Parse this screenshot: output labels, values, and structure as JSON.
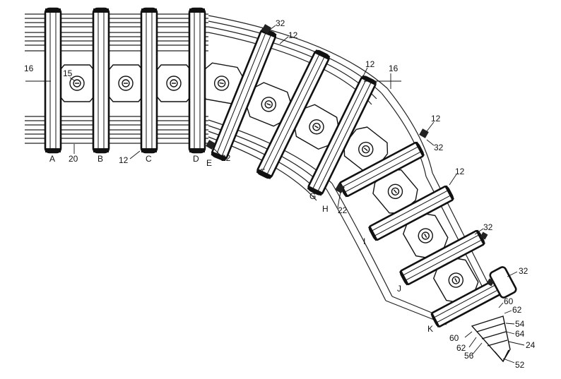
{
  "figure": {
    "ring_letters": [
      "A",
      "B",
      "C",
      "D",
      "E",
      "F",
      "G",
      "H",
      "I",
      "J",
      "K"
    ],
    "reference_numerals": [
      "16",
      "15",
      "20",
      "12",
      "22",
      "32",
      "60",
      "62",
      "54",
      "64",
      "24",
      "56",
      "52"
    ],
    "labels": {
      "sixteen_left": "16",
      "sixteen_right": "16",
      "fifteen": "15",
      "twenty": "20",
      "twelve_bottom": "12",
      "twelve_a": "12",
      "twelve_b": "12",
      "twelve_c": "12",
      "twelve_d": "12",
      "twentytwo_a": "22",
      "twentytwo_b": "22",
      "thirtytwo_a": "32",
      "thirtytwo_b": "32",
      "thirtytwo_c": "32",
      "thirtytwo_d": "32",
      "sixty_a": "60",
      "sixty_b": "60",
      "sixtytwo_a": "62",
      "sixtytwo_b": "62",
      "fiftyfour": "54",
      "sixtyfour": "64",
      "twentyfour": "24",
      "fiftysix": "56",
      "fiftytwo": "52"
    }
  }
}
